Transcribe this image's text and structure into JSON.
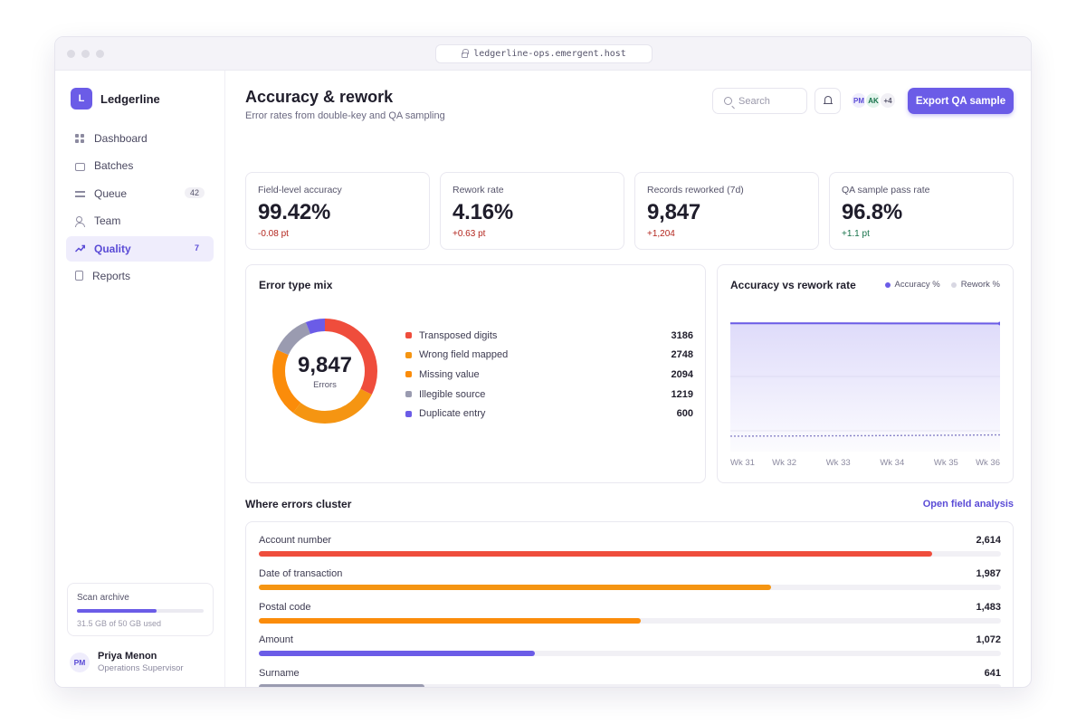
{
  "window": {
    "url": "ledgerline-ops.emergent.host"
  },
  "brand": {
    "logo_letter": "L",
    "name": "Ledgerline"
  },
  "sidebar": {
    "items": [
      {
        "label": "Dashboard",
        "icon": "grid-icon",
        "badge": ""
      },
      {
        "label": "Batches",
        "icon": "folder-icon",
        "badge": ""
      },
      {
        "label": "Queue",
        "icon": "queue-icon",
        "badge": "42"
      },
      {
        "label": "Team",
        "icon": "team-icon",
        "badge": ""
      },
      {
        "label": "Quality",
        "icon": "trend-icon",
        "badge": "7",
        "active": true
      },
      {
        "label": "Reports",
        "icon": "report-icon",
        "badge": ""
      }
    ],
    "storage": {
      "title": "Scan archive",
      "used_fraction": 0.63,
      "subtitle": "31.5 GB of 50 GB used"
    },
    "user": {
      "initials": "PM",
      "name": "Priya Menon",
      "role": "Operations Supervisor"
    }
  },
  "header": {
    "title": "Accuracy & rework",
    "subtitle": "Error rates from double-key and QA sampling",
    "search_placeholder": "Search",
    "avatars": [
      "PM",
      "AK",
      "+4"
    ],
    "export_label": "Export QA sample"
  },
  "kpis": [
    {
      "label": "Field-level accuracy",
      "value": "99.42%",
      "delta": "-0.08 pt",
      "delta_color": "#b3261e"
    },
    {
      "label": "Rework rate",
      "value": "4.16%",
      "delta": "+0.63 pt",
      "delta_color": "#b3261e"
    },
    {
      "label": "Records reworked (7d)",
      "value": "9,847",
      "delta": "+1,204",
      "delta_color": "#b3261e"
    },
    {
      "label": "QA sample pass rate",
      "value": "96.8%",
      "delta": "+1.1 pt",
      "delta_color": "#16724a"
    }
  ],
  "error_mix": {
    "title": "Error type mix",
    "total": "9,847",
    "total_label": "Errors",
    "segments": [
      {
        "label": "Transposed digits",
        "value": 3186,
        "color": "#ef4d3c"
      },
      {
        "label": "Wrong field mapped",
        "value": 2748,
        "color": "#f59512"
      },
      {
        "label": "Missing value",
        "value": 2094,
        "color": "#fb8c0a"
      },
      {
        "label": "Illegible source",
        "value": 1219,
        "color": "#9a9bb0"
      },
      {
        "label": "Duplicate entry",
        "value": 600,
        "color": "#6b5ce7"
      }
    ]
  },
  "chart_data": {
    "type": "area",
    "title": "Accuracy vs rework rate",
    "x": [
      "Wk 31",
      "Wk 32",
      "Wk 33",
      "Wk 34",
      "Wk 35",
      "Wk 36"
    ],
    "series": [
      {
        "name": "Accuracy %",
        "values": [
          99.5,
          99.49,
          99.48,
          99.47,
          99.45,
          99.42
        ],
        "color": "#6b5ce7"
      },
      {
        "name": "Rework %",
        "values": [
          3.53,
          3.6,
          3.7,
          3.82,
          3.98,
          4.16
        ],
        "color": "#d8d7e2"
      }
    ],
    "grid": true,
    "legend": "top-right"
  },
  "clusters": {
    "title": "Where errors cluster",
    "link": "Open field analysis",
    "rows": [
      {
        "label": "Account number",
        "value": 2614,
        "display": "2,614",
        "color": "#ef4d3c"
      },
      {
        "label": "Date of transaction",
        "value": 1987,
        "display": "1,987",
        "color": "#f59512"
      },
      {
        "label": "Postal code",
        "value": 1483,
        "display": "1,483",
        "color": "#fb8c0a"
      },
      {
        "label": "Amount",
        "value": 1072,
        "display": "1,072",
        "color": "#6b5ce7"
      },
      {
        "label": "Surname",
        "value": 641,
        "display": "641",
        "color": "#9a9bb0"
      }
    ],
    "max": 2880
  }
}
